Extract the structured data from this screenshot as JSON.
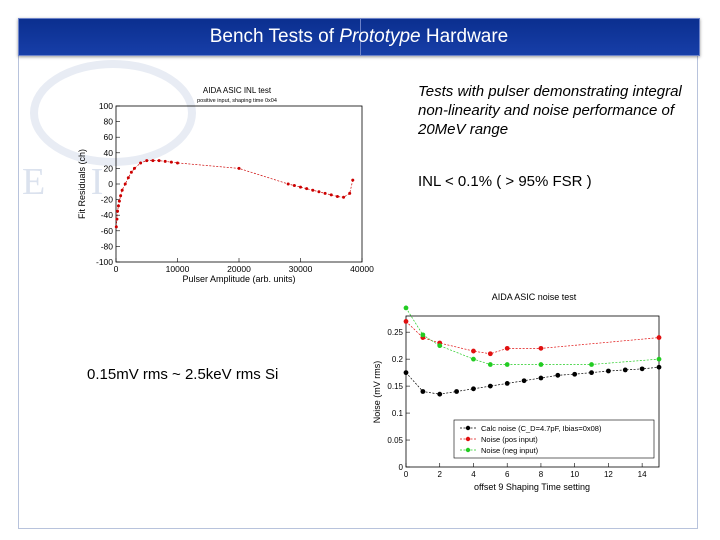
{
  "slide": {
    "title_pre": "Bench Tests of ",
    "title_em": "Prototype",
    "title_post": " Hardware",
    "description": "Tests with pulser demonstrating integral non-linearity and noise performance of 20MeV range",
    "inl_statement": "INL < 0.1% ( > 95% FSR )",
    "noise_statement": "0.15mV rms ~ 2.5keV rms Si",
    "watermark": "E I",
    "colors": {
      "title_bar": "#0b2f8f",
      "title_text": "#ffffff",
      "inl_series": "#cc0000",
      "noise_calc": "#000000",
      "noise_pos": "#e01010",
      "noise_neg": "#22cc22"
    }
  },
  "chart_data": [
    {
      "type": "scatter",
      "title": "AIDA ASIC INL test",
      "subtitle": "positive input, shaping time 0x04",
      "xlabel": "Pulser Amplitude (arb. units)",
      "ylabel": "Fit Residuals (ch)",
      "xlim": [
        0,
        40000
      ],
      "ylim": [
        -100,
        100
      ],
      "xticks": [
        "0",
        "10000",
        "20000",
        "30000",
        "40000"
      ],
      "yticks": [
        "-100",
        "-80",
        "-60",
        "-40",
        "-20",
        "0",
        "20",
        "40",
        "60",
        "80",
        "100"
      ],
      "grid": false,
      "series": [
        {
          "color": "#cc0000",
          "x": [
            50,
            150,
            250,
            400,
            550,
            750,
            1000,
            1500,
            2000,
            2500,
            3000,
            4000,
            5000,
            6000,
            7000,
            8000,
            9000,
            10000,
            20000,
            28000,
            29000,
            30000,
            31000,
            32000,
            33000,
            34000,
            35000,
            36000,
            37000,
            38000,
            38500
          ],
          "y": [
            -55,
            -45,
            -35,
            -28,
            -22,
            -15,
            -8,
            0,
            8,
            15,
            20,
            27,
            30,
            30,
            30,
            29,
            28,
            27,
            20,
            0,
            -2,
            -4,
            -6,
            -8,
            -10,
            -12,
            -14,
            -16,
            -17,
            -12,
            5
          ]
        }
      ]
    },
    {
      "type": "line",
      "title": "AIDA ASIC noise test",
      "xlabel": "offset 9 Shaping Time setting",
      "ylabel": "Noise (mV rms)",
      "xlim": [
        0,
        15
      ],
      "ylim": [
        0,
        0.28
      ],
      "xticks": [
        "0",
        "2",
        "4",
        "6",
        "8",
        "10",
        "12",
        "14"
      ],
      "yticks": [
        "0",
        "0.05",
        "0.1",
        "0.15",
        "0.2",
        "0.25"
      ],
      "grid": false,
      "legend_position": "bottom-right",
      "series": [
        {
          "name": "Calc noise (C_D=4.7pF, Ibias=0x08)",
          "color": "#000000",
          "x": [
            0,
            1,
            2,
            3,
            4,
            5,
            6,
            7,
            8,
            9,
            10,
            11,
            12,
            13,
            14,
            15
          ],
          "y": [
            0.175,
            0.14,
            0.135,
            0.14,
            0.145,
            0.15,
            0.155,
            0.16,
            0.165,
            0.17,
            0.172,
            0.175,
            0.178,
            0.18,
            0.182,
            0.185
          ]
        },
        {
          "name": "Noise (pos input)",
          "color": "#e01010",
          "x": [
            0,
            1,
            2,
            4,
            5,
            6,
            8,
            15
          ],
          "y": [
            0.27,
            0.24,
            0.23,
            0.215,
            0.21,
            0.22,
            0.22,
            0.24
          ]
        },
        {
          "name": "Noise (neg input)",
          "color": "#22cc22",
          "x": [
            0,
            1,
            2,
            4,
            5,
            6,
            8,
            11,
            15
          ],
          "y": [
            0.295,
            0.245,
            0.225,
            0.2,
            0.19,
            0.19,
            0.19,
            0.19,
            0.2
          ]
        }
      ]
    }
  ]
}
